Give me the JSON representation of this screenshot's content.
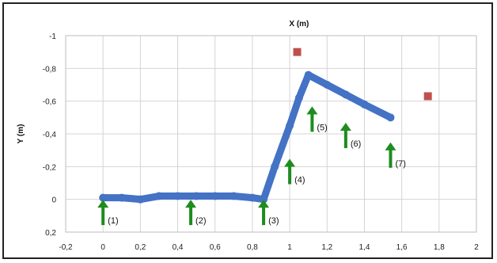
{
  "chart_data": {
    "type": "scatter",
    "xlabel": "X (m)",
    "ylabel": "Y (m)",
    "xlim": [
      -0.2,
      2
    ],
    "ylim": [
      -1,
      0.2
    ],
    "y_axis_inverted": true,
    "x_tick_labels": [
      "-0,2",
      "0",
      "0,2",
      "0,4",
      "0,6",
      "0,8",
      "1",
      "1,2",
      "1,4",
      "1,6",
      "1,8",
      "2"
    ],
    "y_tick_labels": [
      "-1",
      "-0,8",
      "-0,6",
      "-0,4",
      "-0,2",
      "0",
      "0,2"
    ],
    "x_ticks": [
      -0.2,
      0,
      0.2,
      0.4,
      0.6,
      0.8,
      1,
      1.2,
      1.4,
      1.6,
      1.8,
      2
    ],
    "y_ticks": [
      -1,
      -0.8,
      -0.6,
      -0.4,
      -0.2,
      0,
      0.2
    ],
    "grid": true,
    "series": [
      {
        "color": "#4472C4",
        "x": [
          0,
          0.1,
          0.2,
          0.3,
          0.4,
          0.5,
          0.6,
          0.7,
          0.8,
          0.86,
          0.92,
          1.0,
          1.05,
          1.1,
          1.2,
          1.3,
          1.4,
          1.54
        ],
        "y": [
          -0.01,
          -0.01,
          0,
          -0.02,
          -0.02,
          -0.02,
          -0.02,
          -0.02,
          -0.01,
          0,
          -0.2,
          -0.45,
          -0.62,
          -0.76,
          -0.7,
          -0.64,
          -0.58,
          -0.5
        ]
      },
      {
        "color": "#C0504D",
        "marker": "square",
        "x": [
          1.04,
          1.74
        ],
        "y": [
          -0.9,
          -0.63
        ]
      }
    ],
    "annotations": [
      {
        "label": "(1)",
        "x": 0,
        "y": 0.07,
        "color": "#1E8C1E"
      },
      {
        "label": "(2)",
        "x": 0.47,
        "y": 0.07,
        "color": "#1E8C1E"
      },
      {
        "label": "(3)",
        "x": 0.86,
        "y": 0.07,
        "color": "#1E8C1E"
      },
      {
        "label": "(4)",
        "x": 1.0,
        "y": -0.18,
        "color": "#1E8C1E"
      },
      {
        "label": "(5)",
        "x": 1.12,
        "y": -0.5,
        "color": "#1E8C1E"
      },
      {
        "label": "(6)",
        "x": 1.3,
        "y": -0.4,
        "color": "#1E8C1E"
      },
      {
        "label": "(7)",
        "x": 1.54,
        "y": -0.28,
        "color": "#1E8C1E"
      }
    ]
  }
}
